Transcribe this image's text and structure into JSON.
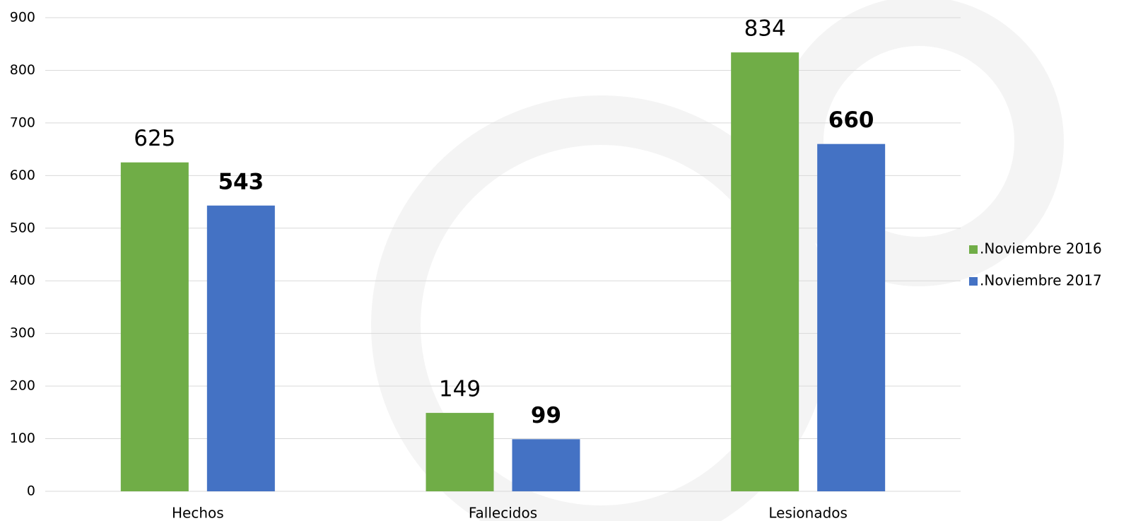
{
  "chart_data": {
    "type": "bar",
    "categories": [
      "Hechos",
      "Fallecidos",
      "Lesionados"
    ],
    "series": [
      {
        "name": ".Noviembre 2016",
        "color": "#70ad47",
        "values": [
          625,
          149,
          834
        ],
        "label_weight": "normal"
      },
      {
        "name": ".Noviembre 2017",
        "color": "#4472c4",
        "values": [
          543,
          99,
          660
        ],
        "label_weight": "bold"
      }
    ],
    "ylim": [
      0,
      900
    ],
    "yticks": [
      0,
      100,
      200,
      300,
      400,
      500,
      600,
      700,
      800,
      900
    ],
    "grid": true,
    "legend": "right"
  }
}
